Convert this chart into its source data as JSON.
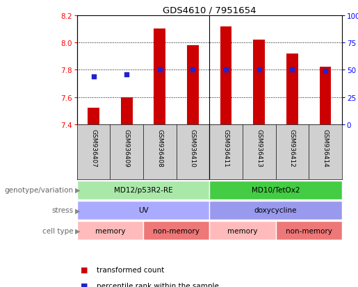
{
  "title": "GDS4610 / 7951654",
  "samples": [
    "GSM936407",
    "GSM936409",
    "GSM936408",
    "GSM936410",
    "GSM936411",
    "GSM936413",
    "GSM936412",
    "GSM936414"
  ],
  "bar_values": [
    7.52,
    7.6,
    8.1,
    7.98,
    8.12,
    8.02,
    7.92,
    7.82
  ],
  "bar_bottom": 7.4,
  "percentile_values": [
    44,
    46,
    50,
    50,
    50,
    50,
    50,
    49
  ],
  "ylim_left": [
    7.4,
    8.2
  ],
  "ylim_right": [
    0,
    100
  ],
  "yticks_left": [
    7.4,
    7.6,
    7.8,
    8.0,
    8.2
  ],
  "yticks_right": [
    0,
    25,
    50,
    75,
    100
  ],
  "bar_color": "#cc0000",
  "dot_color": "#2222cc",
  "grid_color": "#000000",
  "sample_label_bg": "#d0d0d0",
  "divider_color": "#000000",
  "annotations": {
    "genotype_variation": {
      "label": "genotype/variation",
      "groups": [
        {
          "text": "MD12/p53R2-RE",
          "start": 0,
          "end": 3,
          "color": "#aae8aa"
        },
        {
          "text": "MD10/TetOx2",
          "start": 4,
          "end": 7,
          "color": "#44cc44"
        }
      ]
    },
    "stress": {
      "label": "stress",
      "groups": [
        {
          "text": "UV",
          "start": 0,
          "end": 3,
          "color": "#aaaaff"
        },
        {
          "text": "doxycycline",
          "start": 4,
          "end": 7,
          "color": "#9999ee"
        }
      ]
    },
    "cell_type": {
      "label": "cell type",
      "groups": [
        {
          "text": "memory",
          "start": 0,
          "end": 1,
          "color": "#ffbbbb"
        },
        {
          "text": "non-memory",
          "start": 2,
          "end": 3,
          "color": "#ee7777"
        },
        {
          "text": "memory",
          "start": 4,
          "end": 5,
          "color": "#ffbbbb"
        },
        {
          "text": "non-memory",
          "start": 6,
          "end": 7,
          "color": "#ee7777"
        }
      ]
    }
  },
  "legend": [
    {
      "color": "#cc0000",
      "label": "transformed count"
    },
    {
      "color": "#2222cc",
      "label": "percentile rank within the sample"
    }
  ]
}
